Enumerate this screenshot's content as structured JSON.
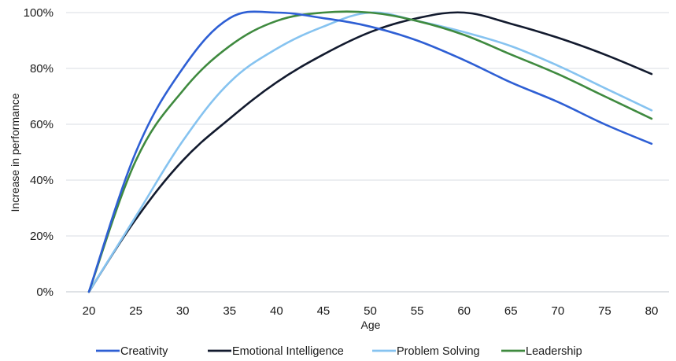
{
  "chart_data": {
    "type": "line",
    "title": "",
    "xlabel": "Age",
    "ylabel": "Increase in performance",
    "x": [
      20,
      25,
      30,
      35,
      40,
      45,
      50,
      55,
      60,
      65,
      70,
      75,
      80
    ],
    "x_tick_labels": [
      "20",
      "25",
      "30",
      "35",
      "40",
      "45",
      "50",
      "55",
      "60",
      "65",
      "70",
      "75",
      "80"
    ],
    "xlim": [
      20,
      80
    ],
    "ylim": [
      0,
      100
    ],
    "y_ticks": [
      0,
      20,
      40,
      60,
      80,
      100
    ],
    "y_tick_labels": [
      "0%",
      "20%",
      "40%",
      "60%",
      "80%",
      "100%"
    ],
    "grid": "horizontal",
    "legend_position": "bottom",
    "series": [
      {
        "name": "Creativity",
        "color": "#2e5fd4",
        "values": [
          0,
          50,
          80,
          98,
          100,
          98,
          95,
          90,
          83,
          75,
          68,
          60,
          53
        ]
      },
      {
        "name": "Emotional Intelligence",
        "color": "#121a2e",
        "values": [
          0,
          26,
          47,
          62,
          75,
          85,
          93,
          98,
          100,
          96,
          91,
          85,
          78
        ]
      },
      {
        "name": "Problem Solving",
        "color": "#86c3f0",
        "values": [
          0,
          27,
          54,
          75,
          87,
          95,
          100,
          97,
          93,
          88,
          81,
          73,
          65
        ]
      },
      {
        "name": "Leadership",
        "color": "#3f8a3f",
        "values": [
          0,
          47,
          72,
          88,
          97,
          100,
          100,
          97,
          92,
          85,
          78,
          70,
          62
        ]
      }
    ]
  }
}
